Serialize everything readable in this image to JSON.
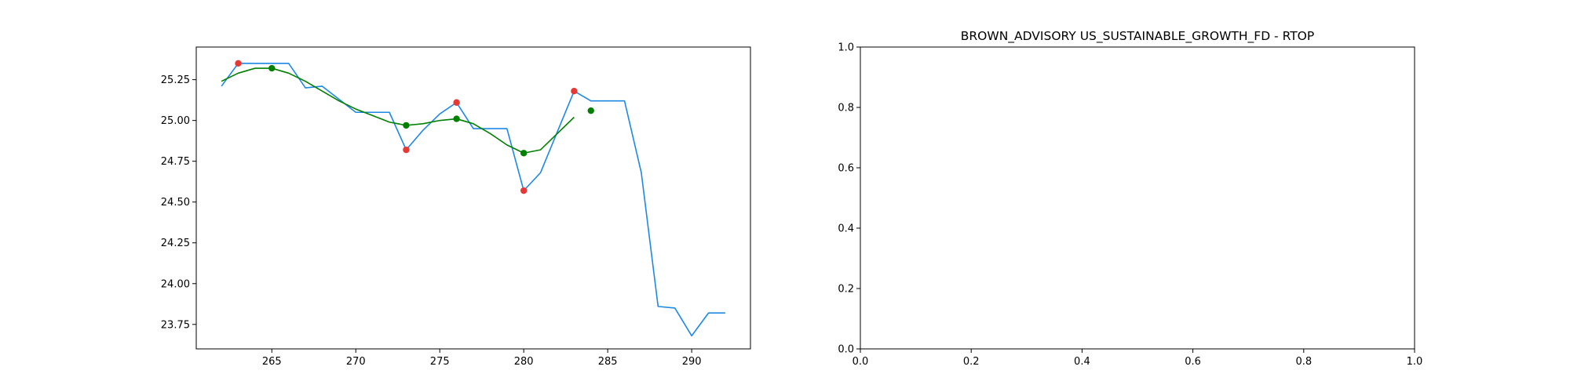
{
  "chart_data": [
    {
      "type": "line",
      "title": "",
      "xlabel": "",
      "ylabel": "",
      "xlim": [
        260.5,
        293.5
      ],
      "ylim": [
        23.6,
        25.45
      ],
      "xticks": [
        265,
        270,
        275,
        280,
        285,
        290
      ],
      "yticks": [
        23.75,
        24.0,
        24.25,
        24.5,
        24.75,
        25.0,
        25.25
      ],
      "xtick_labels": [
        "265",
        "270",
        "275",
        "280",
        "285",
        "290"
      ],
      "ytick_labels": [
        "23.75",
        "24.00",
        "24.25",
        "24.50",
        "24.75",
        "25.00",
        "25.25"
      ],
      "grid": false,
      "series": [
        {
          "kind": "line",
          "color": "#1E88E5",
          "x": [
            262,
            263,
            264,
            265,
            266,
            267,
            268,
            269,
            270,
            271,
            272,
            273,
            274,
            275,
            276,
            277,
            278,
            279,
            280,
            281,
            282,
            283,
            284,
            285,
            286,
            287,
            288,
            289,
            290,
            291,
            292
          ],
          "y": [
            25.21,
            25.35,
            25.35,
            25.35,
            25.35,
            25.2,
            25.21,
            25.13,
            25.05,
            25.05,
            25.05,
            24.82,
            24.94,
            25.04,
            25.11,
            24.95,
            24.95,
            24.95,
            24.57,
            24.68,
            24.93,
            25.18,
            25.12,
            25.12,
            25.12,
            24.68,
            23.86,
            23.85,
            23.68,
            23.82,
            23.82
          ]
        },
        {
          "kind": "line",
          "color": "#008000",
          "x": [
            262,
            263,
            264,
            265,
            266,
            267,
            268,
            269,
            270,
            271,
            272,
            273,
            274,
            275,
            276,
            277,
            278,
            279,
            280,
            281,
            282,
            283
          ],
          "y": [
            25.24,
            25.29,
            25.32,
            25.32,
            25.29,
            25.24,
            25.18,
            25.12,
            25.07,
            25.03,
            24.99,
            24.97,
            24.98,
            25.0,
            25.01,
            24.98,
            24.92,
            24.85,
            24.8,
            24.82,
            24.92,
            25.02
          ]
        },
        {
          "kind": "scatter",
          "color": "#E53935",
          "x": [
            263,
            273,
            276,
            280,
            283
          ],
          "y": [
            25.35,
            24.82,
            25.11,
            24.57,
            25.18
          ]
        },
        {
          "kind": "scatter",
          "color": "#008000",
          "x": [
            265,
            273,
            276,
            280,
            284
          ],
          "y": [
            25.32,
            24.97,
            25.01,
            24.8,
            25.06
          ]
        }
      ]
    },
    {
      "type": "line",
      "title": "BROWN_ADVISORY US_SUSTAINABLE_GROWTH_FD - RTOP",
      "xlabel": "",
      "ylabel": "",
      "xlim": [
        0,
        1
      ],
      "ylim": [
        0,
        1
      ],
      "xticks": [
        0,
        0.2,
        0.4,
        0.6,
        0.8,
        1.0
      ],
      "yticks": [
        0,
        0.2,
        0.4,
        0.6,
        0.8,
        1.0
      ],
      "xtick_labels": [
        "0.0",
        "0.2",
        "0.4",
        "0.6",
        "0.8",
        "1.0"
      ],
      "ytick_labels": [
        "0.0",
        "0.2",
        "0.4",
        "0.6",
        "0.8",
        "1.0"
      ],
      "grid": false,
      "series": []
    }
  ]
}
